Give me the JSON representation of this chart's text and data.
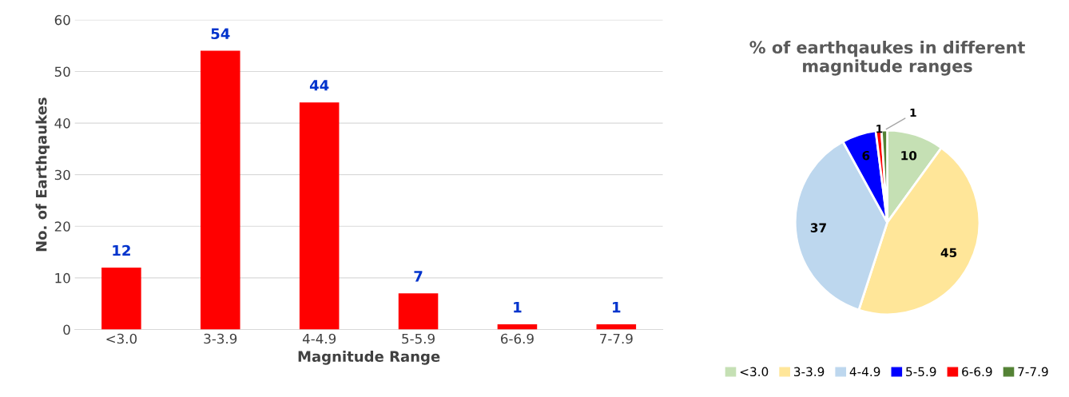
{
  "chart_data": [
    {
      "type": "bar",
      "xlabel": "Magnitude Range",
      "ylabel": "No. of Earthqaukes",
      "categories": [
        "<3.0",
        "3-3.9",
        "4-4.9",
        "5-5.9",
        "6-6.9",
        "7-7.9"
      ],
      "values": [
        12,
        54,
        44,
        7,
        1,
        1
      ],
      "color": "#ff0000",
      "ylim": [
        0,
        60
      ],
      "yticks": [
        0,
        10,
        20,
        30,
        40,
        50,
        60
      ],
      "grid": "y",
      "data_labels": true
    },
    {
      "type": "pie",
      "title": "% of earthqaukes in different magnitude ranges",
      "categories": [
        "<3.0",
        "3-3.9",
        "4-4.9",
        "5-5.9",
        "6-6.9",
        "7-7.9"
      ],
      "values": [
        10,
        45,
        37,
        6,
        1,
        1
      ],
      "colors": [
        "#c5e0b4",
        "#ffe699",
        "#bdd7ee",
        "#0000ff",
        "#ff0000",
        "#548235"
      ],
      "data_labels": true,
      "legend": "bottom"
    }
  ]
}
